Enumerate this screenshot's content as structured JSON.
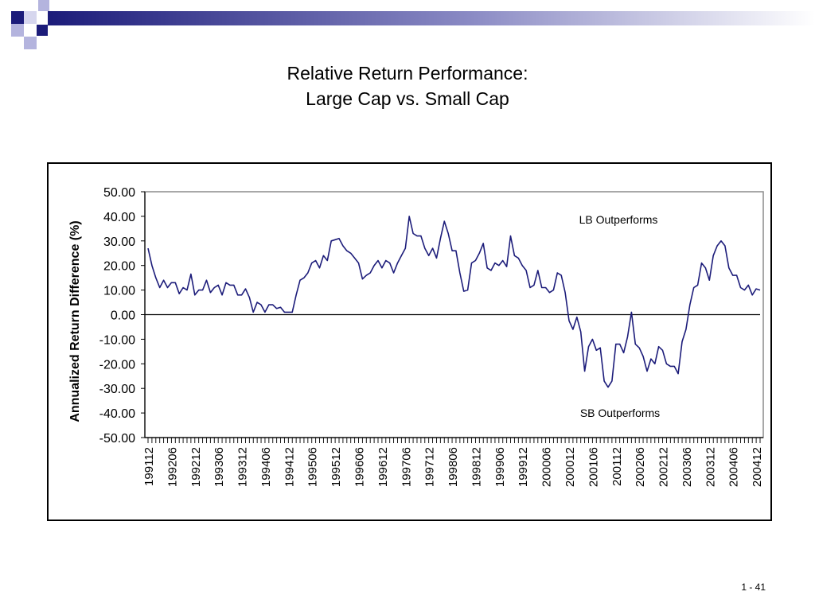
{
  "slide": {
    "title_line1": "Relative Return Performance:",
    "title_line2": "Large Cap vs. Small Cap",
    "page_number": "1 - 41"
  },
  "theme": {
    "deco_dark": "#1c1c7a",
    "deco_light": "#b4b4de",
    "line_color": "#1c1c7a"
  },
  "chart_data": {
    "type": "line",
    "ylabel": "Annualized Return Difference (%)",
    "xlabel": "",
    "ylim": [
      -50,
      50
    ],
    "yticks": [
      "50.00",
      "40.00",
      "30.00",
      "20.00",
      "10.00",
      "0.00",
      "-10.00",
      "-20.00",
      "-30.00",
      "-40.00",
      "-50.00"
    ],
    "xticklabels": [
      "199112",
      "199206",
      "199212",
      "199306",
      "199312",
      "199406",
      "199412",
      "199506",
      "199512",
      "199606",
      "199612",
      "199706",
      "199712",
      "199806",
      "199812",
      "199906",
      "199912",
      "200006",
      "200012",
      "200106",
      "200112",
      "200206",
      "200212",
      "200306",
      "200312",
      "200406",
      "200412"
    ],
    "annotations": [
      "LB Outperforms",
      "SB Outperforms"
    ],
    "grid": false,
    "series": [
      {
        "values": [
          27,
          20,
          15,
          11,
          14,
          11,
          13,
          13,
          8.5,
          11,
          10,
          16.5,
          8,
          10,
          10,
          14,
          9,
          11,
          12,
          8,
          13,
          12,
          12,
          8,
          8,
          10.5,
          7,
          1,
          5,
          4,
          1,
          4,
          4,
          2.5,
          3,
          1,
          1,
          1,
          8,
          14,
          15,
          17,
          21,
          22,
          19,
          24,
          22,
          30,
          30.5,
          31,
          28,
          26,
          25,
          23,
          21,
          14.5,
          16,
          17,
          20,
          22,
          19,
          22,
          21,
          17,
          21,
          24,
          27,
          40,
          33,
          32,
          32,
          27,
          24,
          27,
          23,
          31,
          38,
          33,
          26,
          26,
          17,
          9.5,
          10,
          21,
          22,
          25,
          29,
          19,
          18,
          21,
          20,
          22,
          19.5,
          32,
          24,
          23,
          20,
          18,
          11,
          12,
          18,
          11,
          11,
          9,
          10,
          17,
          16,
          9,
          -2.5,
          -6,
          -1,
          -7,
          -23,
          -13,
          -10,
          -14.5,
          -13.5,
          -27,
          -29.5,
          -27,
          -12,
          -12,
          -15.5,
          -9,
          1,
          -12,
          -13.5,
          -17,
          -23,
          -18,
          -20,
          -13,
          -14.5,
          -20,
          -21,
          -21,
          -24,
          -11,
          -6,
          4,
          11,
          12,
          21,
          19,
          14,
          24,
          28,
          30,
          28,
          19,
          16,
          16,
          11,
          10,
          12,
          8,
          10.5,
          10
        ]
      }
    ]
  }
}
